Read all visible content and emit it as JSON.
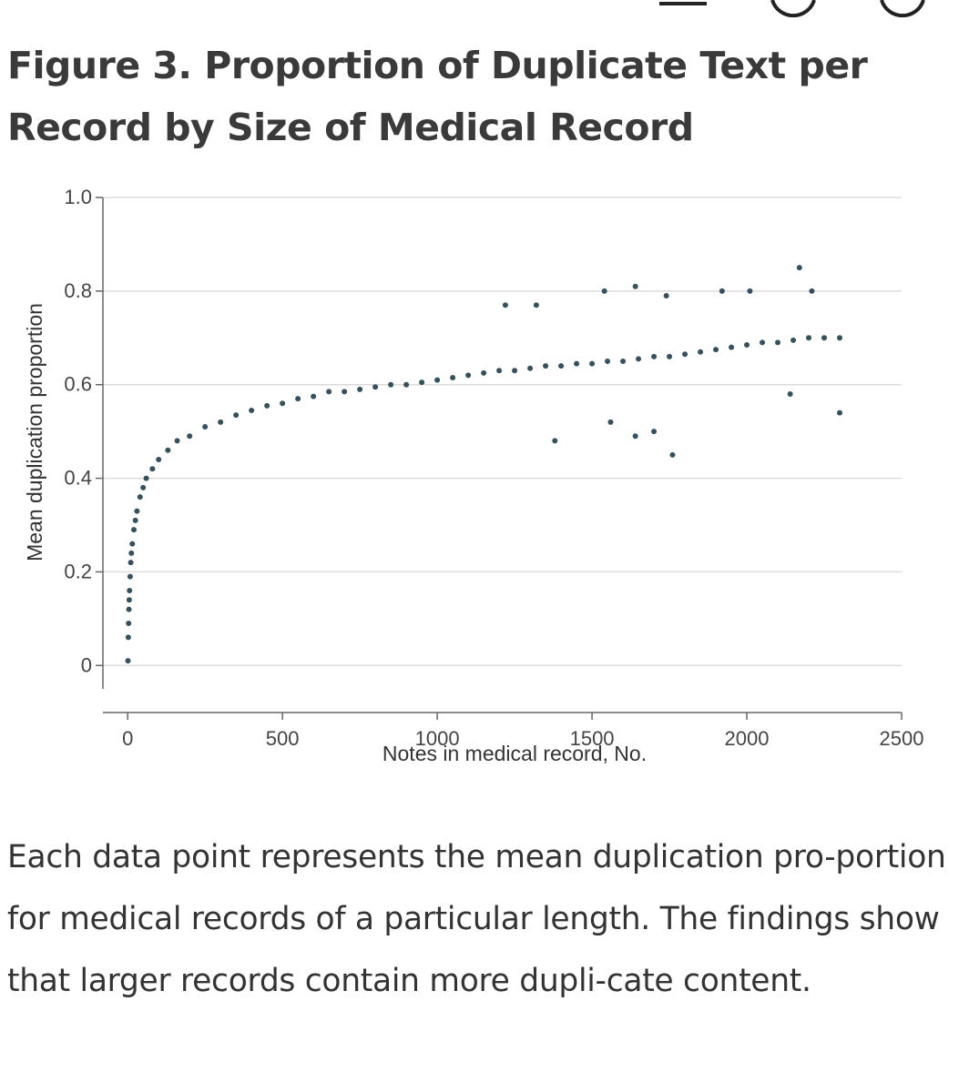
{
  "figure": {
    "title": "Figure 3.  Proportion of Duplicate Text per Record by Size of Medical Record",
    "caption": "Each data point represents the mean duplication pro-portion for medical records of a particular length. The findings show that larger records contain more dupli-cate content."
  },
  "colors": {
    "points": "#36515e",
    "grid": "#dddddd",
    "axis": "#666666",
    "text": "#333333"
  },
  "chart_data": {
    "type": "scatter",
    "title": "",
    "xlabel": "Notes in medical record, No.",
    "ylabel": "Mean duplication proportion",
    "xlim": [
      -80,
      2500
    ],
    "ylim": [
      -0.05,
      1.0
    ],
    "x_ticks": [
      0,
      500,
      1000,
      1500,
      2000,
      2500
    ],
    "x_tick_labels": [
      "0",
      "500",
      "1000",
      "1500",
      "2000",
      "2500"
    ],
    "y_ticks": [
      0,
      0.2,
      0.4,
      0.6,
      0.8,
      1.0
    ],
    "y_tick_labels": [
      "0",
      "0.2",
      "0.4",
      "0.6",
      "0.8",
      "1.0"
    ],
    "grid": "horizontal",
    "legend": "none",
    "points": [
      [
        1,
        0.01
      ],
      [
        2,
        0.06
      ],
      [
        3,
        0.09
      ],
      [
        4,
        0.12
      ],
      [
        5,
        0.14
      ],
      [
        6,
        0.16
      ],
      [
        8,
        0.19
      ],
      [
        10,
        0.22
      ],
      [
        12,
        0.24
      ],
      [
        15,
        0.26
      ],
      [
        20,
        0.29
      ],
      [
        25,
        0.31
      ],
      [
        30,
        0.33
      ],
      [
        40,
        0.36
      ],
      [
        50,
        0.38
      ],
      [
        60,
        0.4
      ],
      [
        80,
        0.42
      ],
      [
        100,
        0.44
      ],
      [
        130,
        0.46
      ],
      [
        160,
        0.48
      ],
      [
        200,
        0.49
      ],
      [
        250,
        0.51
      ],
      [
        300,
        0.52
      ],
      [
        350,
        0.535
      ],
      [
        400,
        0.545
      ],
      [
        450,
        0.555
      ],
      [
        500,
        0.56
      ],
      [
        550,
        0.57
      ],
      [
        600,
        0.575
      ],
      [
        650,
        0.585
      ],
      [
        700,
        0.585
      ],
      [
        750,
        0.59
      ],
      [
        800,
        0.595
      ],
      [
        850,
        0.6
      ],
      [
        900,
        0.6
      ],
      [
        950,
        0.605
      ],
      [
        1000,
        0.61
      ],
      [
        1050,
        0.615
      ],
      [
        1100,
        0.62
      ],
      [
        1150,
        0.625
      ],
      [
        1200,
        0.63
      ],
      [
        1250,
        0.63
      ],
      [
        1300,
        0.635
      ],
      [
        1350,
        0.64
      ],
      [
        1400,
        0.64
      ],
      [
        1450,
        0.645
      ],
      [
        1500,
        0.645
      ],
      [
        1550,
        0.65
      ],
      [
        1600,
        0.65
      ],
      [
        1650,
        0.655
      ],
      [
        1700,
        0.66
      ],
      [
        1750,
        0.66
      ],
      [
        1800,
        0.665
      ],
      [
        1850,
        0.67
      ],
      [
        1900,
        0.675
      ],
      [
        1950,
        0.68
      ],
      [
        2000,
        0.685
      ],
      [
        2050,
        0.69
      ],
      [
        2100,
        0.69
      ],
      [
        2150,
        0.695
      ],
      [
        2200,
        0.7
      ],
      [
        2250,
        0.7
      ],
      [
        2300,
        0.7
      ],
      [
        1220,
        0.77
      ],
      [
        1320,
        0.77
      ],
      [
        1540,
        0.8
      ],
      [
        1640,
        0.81
      ],
      [
        1740,
        0.79
      ],
      [
        1920,
        0.8
      ],
      [
        2010,
        0.8
      ],
      [
        2170,
        0.85
      ],
      [
        2210,
        0.8
      ],
      [
        1380,
        0.48
      ],
      [
        1640,
        0.49
      ],
      [
        1760,
        0.45
      ],
      [
        1700,
        0.5
      ],
      [
        2300,
        0.54
      ],
      [
        2140,
        0.58
      ],
      [
        1560,
        0.52
      ]
    ]
  }
}
